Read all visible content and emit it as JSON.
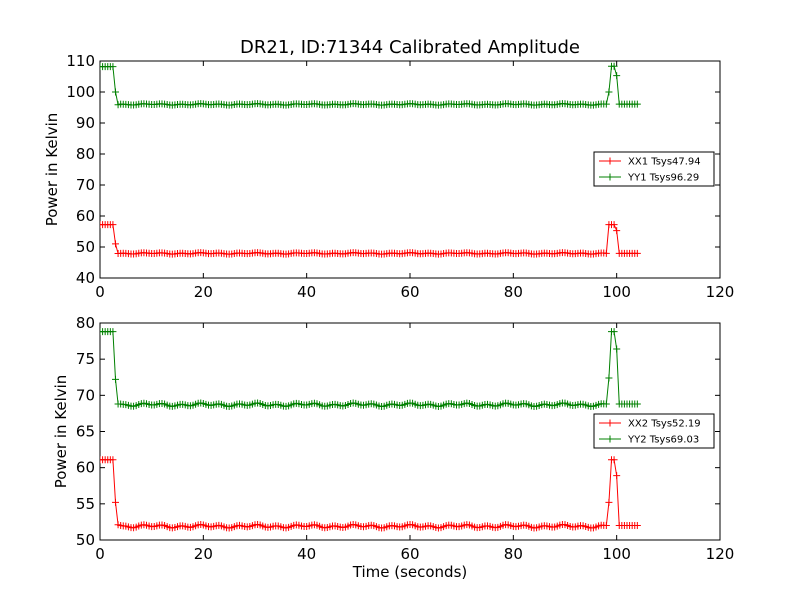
{
  "figure": {
    "title": "DR21, ID:71344 Calibrated Amplitude"
  },
  "chart_data": [
    {
      "type": "line",
      "title": "DR21, ID:71344 Calibrated Amplitude",
      "xlabel": "",
      "ylabel": "Power in Kelvin",
      "xlim": [
        0,
        120
      ],
      "ylim": [
        40,
        110
      ],
      "xticks": [
        0,
        20,
        40,
        60,
        80,
        100,
        120
      ],
      "yticks": [
        40,
        50,
        60,
        70,
        80,
        90,
        100,
        110
      ],
      "grid": false,
      "legend": "center-right",
      "series": [
        {
          "name": "XX1 Tsys47.94",
          "color": "#ff0000",
          "marker": "+",
          "x": [
            0,
            0.5,
            1,
            1.5,
            2,
            2.5,
            3,
            3.5,
            4,
            98,
            98.5,
            99,
            99.5,
            100,
            100.5,
            101,
            101.5,
            102,
            102.5,
            103,
            103.5,
            104
          ],
          "y": [
            57.2,
            57.2,
            57.2,
            57.2,
            57.2,
            57.2,
            51,
            47.9,
            47.94,
            47.94,
            57.2,
            57.2,
            57.2,
            55.3,
            47.94,
            47.94,
            47.94,
            47.94,
            47.94,
            47.94,
            47.94,
            47.94
          ],
          "baseline": {
            "from": 4,
            "to": 98,
            "step": 0.5,
            "value": 47.94
          }
        },
        {
          "name": "YY1 Tsys96.29",
          "color": "#008000",
          "marker": "+",
          "x": [
            0,
            0.5,
            1,
            1.5,
            2,
            2.5,
            3,
            3.5,
            4,
            98,
            98.5,
            99,
            99.5,
            100,
            100.5,
            101,
            101.5,
            102,
            102.5,
            103,
            103.5,
            104
          ],
          "y": [
            108.2,
            108.2,
            108.2,
            108.2,
            108.2,
            108.2,
            100,
            95.9,
            96.1,
            96.1,
            100,
            108.3,
            108.3,
            105.3,
            96.1,
            96.1,
            96.1,
            96.1,
            96.1,
            96.1,
            96.1,
            96.1
          ],
          "baseline": {
            "from": 4,
            "to": 98,
            "step": 0.5,
            "value": 96.0
          }
        }
      ]
    },
    {
      "type": "line",
      "title": "",
      "xlabel": "Time (seconds)",
      "ylabel": "Power in Kelvin",
      "xlim": [
        0,
        120
      ],
      "ylim": [
        50,
        80
      ],
      "xticks": [
        0,
        20,
        40,
        60,
        80,
        100,
        120
      ],
      "yticks": [
        50,
        55,
        60,
        65,
        70,
        75,
        80
      ],
      "grid": false,
      "legend": "center-right",
      "series": [
        {
          "name": "XX2 Tsys52.19",
          "color": "#ff0000",
          "marker": "+",
          "x": [
            0,
            0.5,
            1,
            1.5,
            2,
            2.5,
            3,
            3.5,
            4,
            98,
            98.5,
            99,
            99.5,
            100,
            100.5,
            101,
            101.5,
            102,
            102.5,
            103,
            103.5,
            104
          ],
          "y": [
            61.1,
            61.1,
            61.1,
            61.1,
            61.1,
            61.1,
            55.2,
            52.1,
            52.0,
            52.0,
            55.2,
            61.1,
            61.1,
            58.9,
            52.0,
            52.0,
            52.0,
            52.0,
            52.0,
            52.0,
            52.0,
            52.0
          ],
          "baseline": {
            "from": 4,
            "to": 98,
            "step": 0.5,
            "value": 51.9
          }
        },
        {
          "name": "YY2 Tsys69.03",
          "color": "#008000",
          "marker": "+",
          "x": [
            0,
            0.5,
            1,
            1.5,
            2,
            2.5,
            3,
            3.5,
            4,
            98,
            98.5,
            99,
            99.5,
            100,
            100.5,
            101,
            101.5,
            102,
            102.5,
            103,
            103.5,
            104
          ],
          "y": [
            78.8,
            78.8,
            78.8,
            78.8,
            78.8,
            78.8,
            72.2,
            68.8,
            68.8,
            68.8,
            72.4,
            78.8,
            78.8,
            76.4,
            68.8,
            68.8,
            68.8,
            68.8,
            68.8,
            68.8,
            68.8,
            68.8
          ],
          "baseline": {
            "from": 4,
            "to": 98,
            "step": 0.5,
            "value": 68.7
          }
        }
      ]
    }
  ]
}
